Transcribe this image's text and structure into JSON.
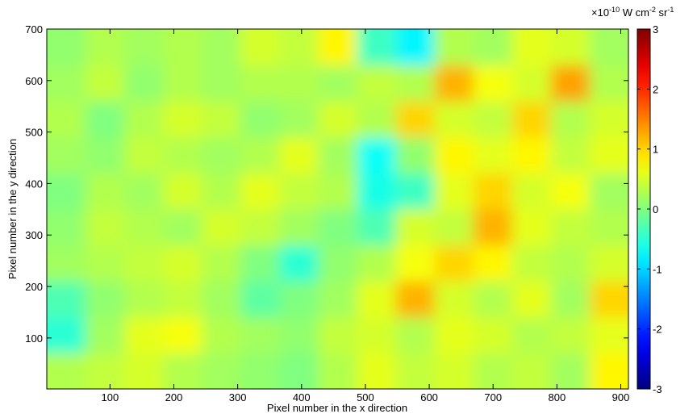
{
  "chart_data": {
    "type": "heatmap",
    "xlabel": "Pixel number in the x direction",
    "ylabel": "Pixel number in the y direction",
    "xlim": [
      1,
      912
    ],
    "ylim": [
      1,
      700
    ],
    "xticks": [
      100,
      200,
      300,
      400,
      500,
      600,
      700,
      800,
      900
    ],
    "yticks": [
      100,
      200,
      300,
      400,
      500,
      600,
      700
    ],
    "colormap": "jet",
    "clim": [
      -3,
      3
    ],
    "cticks": [
      -3,
      -2,
      -1,
      0,
      1,
      2,
      3
    ],
    "colorbar_label": [
      {
        "text": "×10"
      },
      {
        "text": "-10",
        "sup": true
      },
      {
        "text": " W cm"
      },
      {
        "text": "-2",
        "sup": true
      },
      {
        "text": " sr"
      },
      {
        "text": "-1",
        "sup": true
      }
    ],
    "z": [
      [
        0.3,
        0.4,
        0.5,
        0.3,
        0.2,
        0.1,
        0.0,
        0.3,
        0.6,
        0.4,
        0.5,
        0.3,
        0.4,
        0.2,
        0.8
      ],
      [
        -0.5,
        0.2,
        0.6,
        0.7,
        0.3,
        0.2,
        0.1,
        0.4,
        0.5,
        0.3,
        0.6,
        0.5,
        0.3,
        0.4,
        0.6
      ],
      [
        -0.3,
        0.1,
        0.3,
        0.4,
        0.2,
        -0.2,
        0.0,
        0.2,
        0.6,
        1.2,
        0.5,
        0.3,
        0.6,
        0.2,
        1.0
      ],
      [
        0.2,
        0.3,
        0.4,
        0.5,
        0.3,
        0.0,
        -0.5,
        0.1,
        0.3,
        0.7,
        1.0,
        0.8,
        0.4,
        0.3,
        0.5
      ],
      [
        0.1,
        0.4,
        0.3,
        0.2,
        0.5,
        0.4,
        0.2,
        0.0,
        -0.3,
        0.5,
        0.4,
        1.2,
        0.6,
        0.4,
        0.3
      ],
      [
        0.0,
        0.3,
        0.2,
        0.5,
        0.3,
        0.6,
        0.4,
        0.3,
        -0.6,
        -0.4,
        0.6,
        1.0,
        0.5,
        0.7,
        0.2
      ],
      [
        0.2,
        0.1,
        0.4,
        0.3,
        0.2,
        0.3,
        0.6,
        0.2,
        -0.7,
        0.1,
        0.8,
        0.6,
        0.8,
        0.4,
        0.6
      ],
      [
        0.3,
        0.0,
        0.3,
        0.5,
        0.4,
        0.1,
        0.2,
        0.5,
        0.3,
        1.0,
        0.5,
        0.4,
        1.0,
        0.3,
        0.5
      ],
      [
        0.2,
        0.4,
        0.1,
        0.3,
        0.2,
        0.3,
        0.3,
        0.2,
        0.4,
        0.3,
        1.2,
        0.7,
        0.5,
        1.3,
        0.3
      ],
      [
        0.1,
        0.3,
        0.2,
        0.3,
        0.2,
        0.5,
        0.4,
        0.8,
        -0.4,
        -0.8,
        0.3,
        0.2,
        0.6,
        0.5,
        0.2
      ]
    ]
  }
}
